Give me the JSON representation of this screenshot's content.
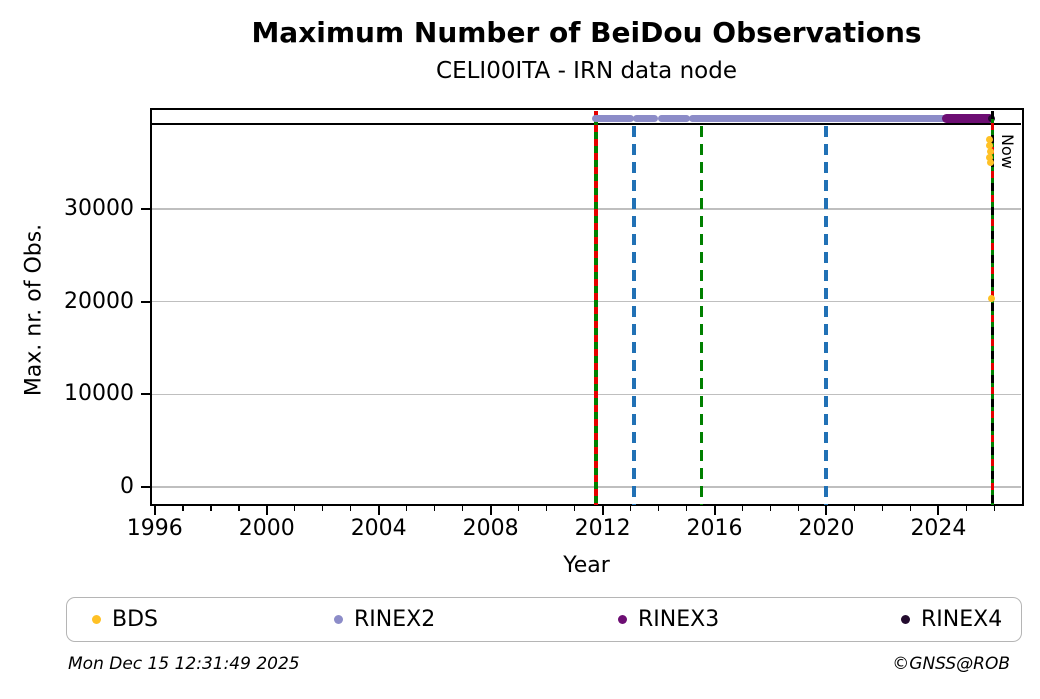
{
  "header": {
    "title": "Maximum Number of BeiDou Observations",
    "subtitle": "CELI00ITA - IRN data node"
  },
  "footer": {
    "timestamp": "Mon Dec 15 12:31:49 2025",
    "credit": "©GNSS@ROB"
  },
  "legend": {
    "items": [
      {
        "label": "BDS",
        "color": "#FFC125"
      },
      {
        "label": "RINEX2",
        "color": "#8C8CC8"
      },
      {
        "label": "RINEX3",
        "color": "#6D0E73"
      },
      {
        "label": "RINEX4",
        "color": "#230B2E"
      }
    ]
  },
  "chart_data": {
    "type": "scatter",
    "title": "Maximum Number of BeiDou Observations",
    "subtitle": "CELI00ITA - IRN data node",
    "xlabel": "Year",
    "ylabel": "Max. nr. of Obs.",
    "xlim": [
      1995.9,
      2026.95
    ],
    "ylim": [
      -1700,
      40670
    ],
    "x_major_ticks": [
      1996,
      2000,
      2004,
      2008,
      2012,
      2016,
      2020,
      2024
    ],
    "x_minor_step": 1,
    "y_major_ticks": [
      0,
      10000,
      20000,
      30000
    ],
    "grid": "horizontal",
    "grid_color": "#BFBFBF",
    "max_line": {
      "value": 39150,
      "color": "#000000"
    },
    "event_lines": [
      {
        "year": 2011.77,
        "style": "mixed",
        "colors": [
          "#008000",
          "#E60000"
        ]
      },
      {
        "year": 2013.12,
        "style": "dashed",
        "colors": [
          "#2171B5"
        ]
      },
      {
        "year": 2015.54,
        "style": "dashed",
        "colors": [
          "#008000"
        ]
      },
      {
        "year": 2019.98,
        "style": "dashed",
        "colors": [
          "#2171B5"
        ]
      }
    ],
    "now_line": {
      "year": 2025.93,
      "style": "mixed",
      "colors": [
        "#008000",
        "#E60000",
        "#000000"
      ],
      "label": "Now"
    },
    "series": [
      {
        "name": "BDS",
        "mark": "points",
        "color": "#FFC125",
        "points": [
          [
            2025.82,
            37500
          ],
          [
            2025.82,
            36800
          ],
          [
            2025.85,
            36200
          ],
          [
            2025.82,
            35600
          ],
          [
            2025.85,
            35000
          ],
          [
            2025.9,
            20400
          ]
        ]
      },
      {
        "name": "RINEX2",
        "mark": "band",
        "color": "#8C8CC8",
        "value": 39800,
        "segments": [
          [
            2011.72,
            2013.0
          ],
          [
            2013.18,
            2013.88
          ],
          [
            2014.1,
            2015.0
          ],
          [
            2015.2,
            2025.82
          ]
        ]
      },
      {
        "name": "RINEX3",
        "mark": "band",
        "color": "#6D0E73",
        "value": 39780,
        "segments": [
          [
            2024.25,
            2025.88
          ]
        ]
      },
      {
        "name": "RINEX4",
        "mark": "points",
        "color": "#230B2E",
        "points": [
          [
            2025.9,
            39780
          ]
        ]
      }
    ]
  }
}
